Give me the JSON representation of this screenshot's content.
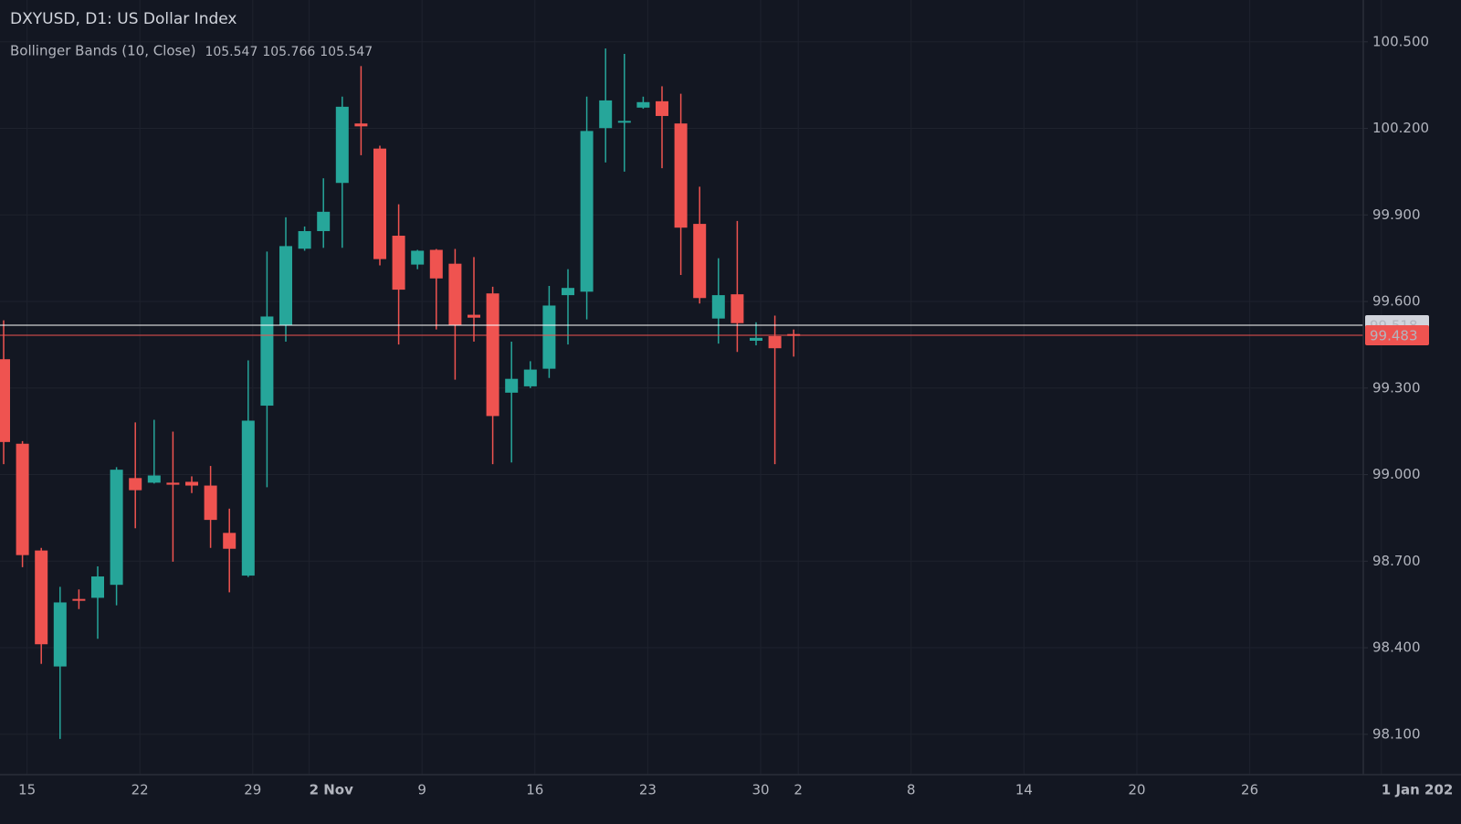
{
  "chart_data": {
    "type": "candlestick",
    "title": "DXYUSD, D1: US Dollar Index",
    "indicator": {
      "name": "Bollinger Bands (10, Close)",
      "values": [
        105.547,
        105.766,
        105.547
      ],
      "colors": [
        "#ef5350",
        "#26a69a",
        "#26a69a"
      ]
    },
    "up_color": "#26a69a",
    "down_color": "#ef5350",
    "grid": true,
    "categories": [
      null,
      "15",
      null,
      null,
      null,
      null,
      null,
      "22",
      null,
      null,
      null,
      null,
      null,
      "29",
      null,
      null,
      "2 Nov",
      null,
      null,
      null,
      null,
      null,
      "9",
      null,
      null,
      null,
      null,
      null,
      "16",
      null,
      null,
      null,
      null,
      null,
      "23",
      null,
      null,
      null,
      null,
      null,
      "30",
      null,
      "2",
      null,
      null,
      null,
      null,
      null,
      "8",
      null,
      null,
      null,
      null,
      null,
      "14",
      null,
      null,
      null,
      null,
      null,
      "20",
      null,
      null,
      null,
      null,
      null,
      "26",
      null,
      null,
      null,
      null,
      null,
      null,
      "1 Jan 202",
      null
    ],
    "open": [
      99.4,
      99.107,
      98.737,
      98.335,
      98.569,
      98.573,
      98.618,
      98.988,
      98.972,
      98.972,
      98.975,
      98.962,
      98.798,
      98.65,
      99.239,
      99.519,
      99.783,
      99.844,
      100.011,
      100.217,
      100.13,
      99.828,
      99.728,
      99.779,
      99.731,
      99.554,
      99.628,
      99.284,
      99.306,
      99.367,
      99.622,
      99.634,
      100.201,
      100.22,
      100.272,
      100.294,
      100.217,
      99.869,
      99.541,
      99.625,
      99.464,
      99.48,
      99.487,
      null,
      null,
      null,
      null,
      null,
      null,
      null,
      null,
      null,
      null,
      null,
      null,
      null,
      null,
      null,
      null,
      null,
      null,
      null,
      null,
      null,
      null,
      null,
      null,
      null,
      null,
      null,
      null,
      null,
      null,
      null,
      null
    ],
    "high": [
      99.535,
      99.116,
      98.746,
      98.611,
      98.602,
      98.682,
      99.026,
      99.181,
      99.19,
      99.149,
      98.994,
      99.03,
      98.882,
      99.396,
      99.773,
      99.892,
      99.86,
      100.027,
      100.31,
      100.416,
      100.14,
      99.937,
      99.779,
      99.782,
      99.782,
      99.754,
      99.651,
      99.461,
      99.393,
      99.654,
      99.712,
      100.31,
      100.477,
      100.458,
      100.31,
      100.346,
      100.32,
      99.998,
      99.75,
      99.879,
      99.528,
      99.551,
      99.503,
      null,
      null,
      null,
      null,
      null,
      null,
      null,
      null,
      null,
      null,
      null,
      null,
      null,
      null,
      null,
      null,
      null,
      null,
      null,
      null,
      null,
      null,
      null,
      null,
      null,
      null,
      null,
      null,
      null,
      null,
      null,
      null
    ],
    "low": [
      99.036,
      98.679,
      98.344,
      98.084,
      98.534,
      98.431,
      98.547,
      98.814,
      98.969,
      98.698,
      98.936,
      98.746,
      98.592,
      98.645,
      98.956,
      99.461,
      99.776,
      99.786,
      99.786,
      100.107,
      99.725,
      99.451,
      99.712,
      99.503,
      99.329,
      99.461,
      99.036,
      99.042,
      99.3,
      99.335,
      99.451,
      99.538,
      100.082,
      100.05,
      100.268,
      100.062,
      99.692,
      99.593,
      99.454,
      99.425,
      99.448,
      99.036,
      99.409,
      null,
      null,
      null,
      null,
      null,
      null,
      null,
      null,
      null,
      null,
      null,
      null,
      null,
      null,
      null,
      null,
      null,
      null,
      null,
      null,
      null,
      null,
      null,
      null,
      null,
      null,
      null,
      null,
      null,
      null,
      null,
      null
    ],
    "close": [
      99.113,
      98.721,
      98.412,
      98.557,
      98.563,
      98.647,
      99.017,
      98.946,
      98.997,
      98.965,
      98.962,
      98.843,
      98.743,
      99.187,
      99.548,
      99.792,
      99.844,
      99.911,
      100.275,
      100.207,
      99.747,
      99.641,
      99.776,
      99.68,
      99.519,
      99.544,
      99.203,
      99.332,
      99.364,
      99.586,
      99.647,
      100.191,
      100.297,
      100.226,
      100.291,
      100.243,
      99.856,
      99.612,
      99.622,
      99.525,
      99.474,
      99.438,
      99.483,
      null,
      null,
      null,
      null,
      null,
      null,
      null,
      null,
      null,
      null,
      null,
      null,
      null,
      null,
      null,
      null,
      null,
      null,
      null,
      null,
      null,
      null,
      null,
      null,
      null,
      null,
      null,
      null,
      null,
      null,
      null,
      null
    ],
    "ylim": [
      97.96,
      100.645
    ],
    "yticks": [
      {
        "value": 98.1,
        "label": "98.100"
      },
      {
        "value": 98.4,
        "label": "98.400"
      },
      {
        "value": 98.7,
        "label": "98.700"
      },
      {
        "value": 99.0,
        "label": "99.000"
      },
      {
        "value": 99.3,
        "label": "99.300"
      },
      {
        "value": 99.6,
        "label": "99.600"
      },
      {
        "value": 99.9,
        "label": "99.900"
      },
      {
        "value": 100.2,
        "label": "100.200"
      },
      {
        "value": 100.5,
        "label": "100.500"
      }
    ],
    "price_lines": [
      {
        "value": 99.518,
        "color": "#ffffff"
      },
      {
        "value": 99.483,
        "color": "#ef5350"
      }
    ]
  }
}
